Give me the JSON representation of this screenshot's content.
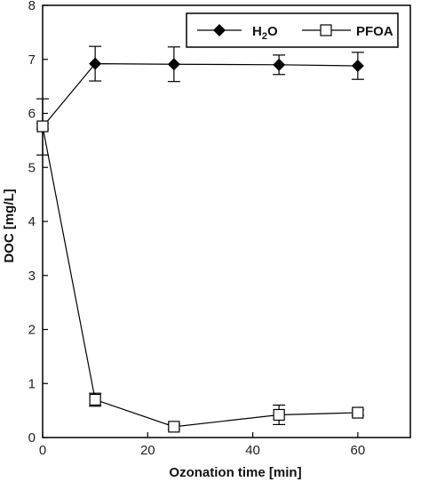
{
  "chart_data": {
    "type": "line",
    "xlabel": "Ozonation time [min]",
    "ylabel": "DOC [mg/L]",
    "xlim": [
      0,
      70
    ],
    "ylim": [
      0,
      8
    ],
    "xticks": [
      0,
      20,
      40,
      60
    ],
    "yticks": [
      0,
      1,
      2,
      3,
      4,
      5,
      6,
      7,
      8
    ],
    "grid": false,
    "legend_position": "top-right",
    "series": [
      {
        "name": "H2O",
        "legend_label": {
          "main": "H",
          "sub": "2",
          "tail": "O"
        },
        "marker": "filled-diamond",
        "x": [
          0,
          10,
          25,
          45,
          60
        ],
        "y": [
          5.75,
          6.92,
          6.91,
          6.9,
          6.88
        ],
        "err": [
          0.52,
          0.32,
          0.32,
          0.18,
          0.25
        ]
      },
      {
        "name": "PFOA",
        "legend_label": {
          "main": "PFOA",
          "sub": "",
          "tail": ""
        },
        "marker": "open-square",
        "x": [
          0,
          10,
          25,
          45,
          60
        ],
        "y": [
          5.76,
          0.7,
          0.2,
          0.42,
          0.46
        ],
        "err": [
          0.05,
          0.12,
          0.05,
          0.18,
          0.05
        ]
      }
    ]
  }
}
